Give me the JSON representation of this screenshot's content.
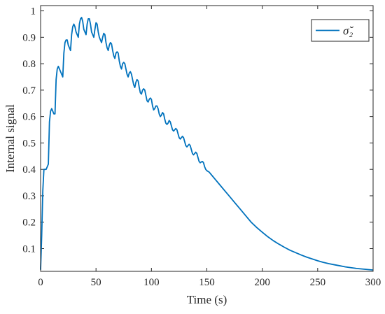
{
  "chart_data": {
    "type": "line",
    "title": "",
    "xlabel": "Time (s)",
    "ylabel": "Internal signal",
    "xlim": [
      0,
      300
    ],
    "ylim": [
      0.014,
      1.02
    ],
    "x_ticks": [
      0,
      50,
      100,
      150,
      200,
      250,
      300
    ],
    "y_ticks": [
      0.1,
      0.2,
      0.3,
      0.4,
      0.5,
      0.6,
      0.7,
      0.8,
      0.9,
      1
    ],
    "x_tick_labels": [
      "0",
      "50",
      "100",
      "150",
      "200",
      "250",
      "300"
    ],
    "y_tick_labels": [
      "0.1",
      "0.2",
      "0.3",
      "0.4",
      "0.5",
      "0.6",
      "0.7",
      "0.8",
      "0.9",
      "1"
    ],
    "grid": false,
    "legend_position": "top-right",
    "series": [
      {
        "name": "σ̆₂",
        "color": "#0072BD",
        "points": [
          [
            0,
            0.02
          ],
          [
            1,
            0.15
          ],
          [
            2,
            0.32
          ],
          [
            3,
            0.4
          ],
          [
            4,
            0.4
          ],
          [
            5,
            0.4
          ],
          [
            6,
            0.41
          ],
          [
            7,
            0.42
          ],
          [
            8,
            0.58
          ],
          [
            9,
            0.62
          ],
          [
            10,
            0.63
          ],
          [
            11,
            0.62
          ],
          [
            12,
            0.61
          ],
          [
            13,
            0.61
          ],
          [
            14,
            0.74
          ],
          [
            15,
            0.78
          ],
          [
            16,
            0.79
          ],
          [
            17,
            0.78
          ],
          [
            18,
            0.77
          ],
          [
            19,
            0.76
          ],
          [
            20,
            0.75
          ],
          [
            21,
            0.84
          ],
          [
            22,
            0.88
          ],
          [
            23,
            0.89
          ],
          [
            24,
            0.89
          ],
          [
            25,
            0.87
          ],
          [
            26,
            0.86
          ],
          [
            27,
            0.85
          ],
          [
            28,
            0.91
          ],
          [
            29,
            0.94
          ],
          [
            30,
            0.95
          ],
          [
            31,
            0.94
          ],
          [
            32,
            0.92
          ],
          [
            33,
            0.91
          ],
          [
            34,
            0.9
          ],
          [
            35,
            0.95
          ],
          [
            36,
            0.97
          ],
          [
            37,
            0.975
          ],
          [
            38,
            0.96
          ],
          [
            39,
            0.93
          ],
          [
            40,
            0.92
          ],
          [
            41,
            0.91
          ],
          [
            42,
            0.95
          ],
          [
            43,
            0.97
          ],
          [
            44,
            0.97
          ],
          [
            45,
            0.95
          ],
          [
            46,
            0.92
          ],
          [
            47,
            0.91
          ],
          [
            48,
            0.9
          ],
          [
            49,
            0.93
          ],
          [
            50,
            0.955
          ],
          [
            51,
            0.95
          ],
          [
            52,
            0.92
          ],
          [
            53,
            0.9
          ],
          [
            54,
            0.89
          ],
          [
            55,
            0.88
          ],
          [
            56,
            0.9
          ],
          [
            57,
            0.915
          ],
          [
            58,
            0.91
          ],
          [
            59,
            0.88
          ],
          [
            60,
            0.86
          ],
          [
            61,
            0.85
          ],
          [
            62,
            0.87
          ],
          [
            63,
            0.88
          ],
          [
            64,
            0.875
          ],
          [
            65,
            0.85
          ],
          [
            66,
            0.83
          ],
          [
            67,
            0.82
          ],
          [
            68,
            0.84
          ],
          [
            69,
            0.845
          ],
          [
            70,
            0.84
          ],
          [
            71,
            0.81
          ],
          [
            72,
            0.79
          ],
          [
            73,
            0.78
          ],
          [
            74,
            0.8
          ],
          [
            75,
            0.805
          ],
          [
            76,
            0.8
          ],
          [
            77,
            0.78
          ],
          [
            78,
            0.76
          ],
          [
            79,
            0.75
          ],
          [
            80,
            0.765
          ],
          [
            81,
            0.77
          ],
          [
            82,
            0.76
          ],
          [
            83,
            0.74
          ],
          [
            84,
            0.72
          ],
          [
            85,
            0.71
          ],
          [
            86,
            0.73
          ],
          [
            87,
            0.74
          ],
          [
            88,
            0.735
          ],
          [
            89,
            0.71
          ],
          [
            90,
            0.69
          ],
          [
            91,
            0.685
          ],
          [
            92,
            0.7
          ],
          [
            93,
            0.705
          ],
          [
            94,
            0.7
          ],
          [
            95,
            0.68
          ],
          [
            96,
            0.66
          ],
          [
            97,
            0.655
          ],
          [
            98,
            0.665
          ],
          [
            99,
            0.67
          ],
          [
            100,
            0.665
          ],
          [
            101,
            0.64
          ],
          [
            102,
            0.625
          ],
          [
            103,
            0.63
          ],
          [
            104,
            0.64
          ],
          [
            105,
            0.64
          ],
          [
            106,
            0.63
          ],
          [
            107,
            0.61
          ],
          [
            108,
            0.6
          ],
          [
            109,
            0.605
          ],
          [
            110,
            0.615
          ],
          [
            111,
            0.61
          ],
          [
            112,
            0.59
          ],
          [
            113,
            0.575
          ],
          [
            114,
            0.57
          ],
          [
            115,
            0.575
          ],
          [
            116,
            0.585
          ],
          [
            117,
            0.58
          ],
          [
            118,
            0.565
          ],
          [
            119,
            0.55
          ],
          [
            120,
            0.545
          ],
          [
            121,
            0.55
          ],
          [
            122,
            0.555
          ],
          [
            123,
            0.55
          ],
          [
            124,
            0.535
          ],
          [
            125,
            0.52
          ],
          [
            126,
            0.515
          ],
          [
            127,
            0.52
          ],
          [
            128,
            0.525
          ],
          [
            129,
            0.52
          ],
          [
            130,
            0.505
          ],
          [
            131,
            0.49
          ],
          [
            132,
            0.485
          ],
          [
            133,
            0.49
          ],
          [
            134,
            0.495
          ],
          [
            135,
            0.49
          ],
          [
            136,
            0.475
          ],
          [
            137,
            0.46
          ],
          [
            138,
            0.455
          ],
          [
            139,
            0.46
          ],
          [
            140,
            0.465
          ],
          [
            141,
            0.46
          ],
          [
            142,
            0.445
          ],
          [
            143,
            0.43
          ],
          [
            144,
            0.425
          ],
          [
            145,
            0.428
          ],
          [
            146,
            0.43
          ],
          [
            147,
            0.425
          ],
          [
            148,
            0.41
          ],
          [
            149,
            0.4
          ],
          [
            150,
            0.395
          ],
          [
            152,
            0.39
          ],
          [
            155,
            0.375
          ],
          [
            158,
            0.36
          ],
          [
            162,
            0.34
          ],
          [
            166,
            0.32
          ],
          [
            170,
            0.3
          ],
          [
            175,
            0.275
          ],
          [
            180,
            0.25
          ],
          [
            185,
            0.225
          ],
          [
            190,
            0.2
          ],
          [
            195,
            0.18
          ],
          [
            200,
            0.162
          ],
          [
            205,
            0.145
          ],
          [
            210,
            0.13
          ],
          [
            215,
            0.117
          ],
          [
            220,
            0.105
          ],
          [
            225,
            0.094
          ],
          [
            230,
            0.085
          ],
          [
            235,
            0.076
          ],
          [
            240,
            0.068
          ],
          [
            245,
            0.061
          ],
          [
            250,
            0.054
          ],
          [
            255,
            0.048
          ],
          [
            260,
            0.043
          ],
          [
            265,
            0.039
          ],
          [
            270,
            0.035
          ],
          [
            275,
            0.031
          ],
          [
            280,
            0.028
          ],
          [
            285,
            0.025
          ],
          [
            290,
            0.023
          ],
          [
            295,
            0.021
          ],
          [
            300,
            0.019
          ]
        ]
      }
    ]
  }
}
